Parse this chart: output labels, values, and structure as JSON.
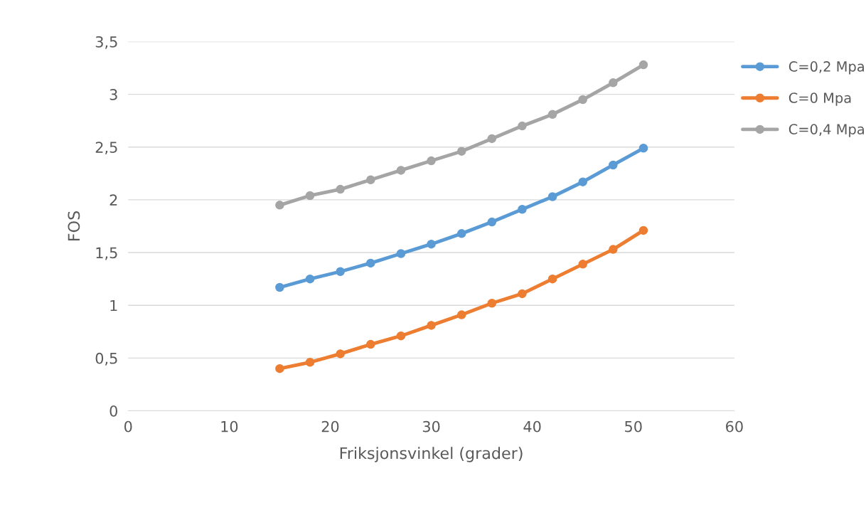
{
  "chart_data": {
    "type": "line",
    "xlabel": "Friksjonsvinkel (grader)",
    "ylabel": "FOS",
    "x": [
      15,
      18,
      21,
      24,
      27,
      30,
      33,
      36,
      39,
      42,
      45,
      48,
      51
    ],
    "series": [
      {
        "name": "C=0,2 Mpa",
        "color": "#5b9bd5",
        "values": [
          1.17,
          1.25,
          1.32,
          1.4,
          1.49,
          1.58,
          1.68,
          1.79,
          1.91,
          2.03,
          2.17,
          2.33,
          2.49
        ]
      },
      {
        "name": "C=0 Mpa",
        "color": "#ed7d31",
        "values": [
          0.4,
          0.46,
          0.54,
          0.63,
          0.71,
          0.81,
          0.91,
          1.02,
          1.11,
          1.25,
          1.39,
          1.53,
          1.71
        ]
      },
      {
        "name": "C=0,4 Mpa",
        "color": "#a5a5a5",
        "values": [
          1.95,
          2.04,
          2.1,
          2.19,
          2.28,
          2.37,
          2.46,
          2.58,
          2.7,
          2.81,
          2.95,
          3.11,
          3.28
        ]
      }
    ],
    "xlim": [
      0,
      60
    ],
    "xticks": [
      0,
      10,
      20,
      30,
      40,
      50,
      60
    ],
    "ylim": [
      0,
      3.5
    ],
    "yticks": [
      0,
      {
        "value": 0.5,
        "label": "0,5"
      },
      1,
      {
        "value": 1.5,
        "label": "1,5"
      },
      2,
      {
        "value": 2.5,
        "label": "2,5"
      },
      3,
      {
        "value": 3.5,
        "label": "3,5"
      }
    ],
    "grid": "y",
    "legend": "right",
    "marker": "circle",
    "line_style": "solid"
  }
}
